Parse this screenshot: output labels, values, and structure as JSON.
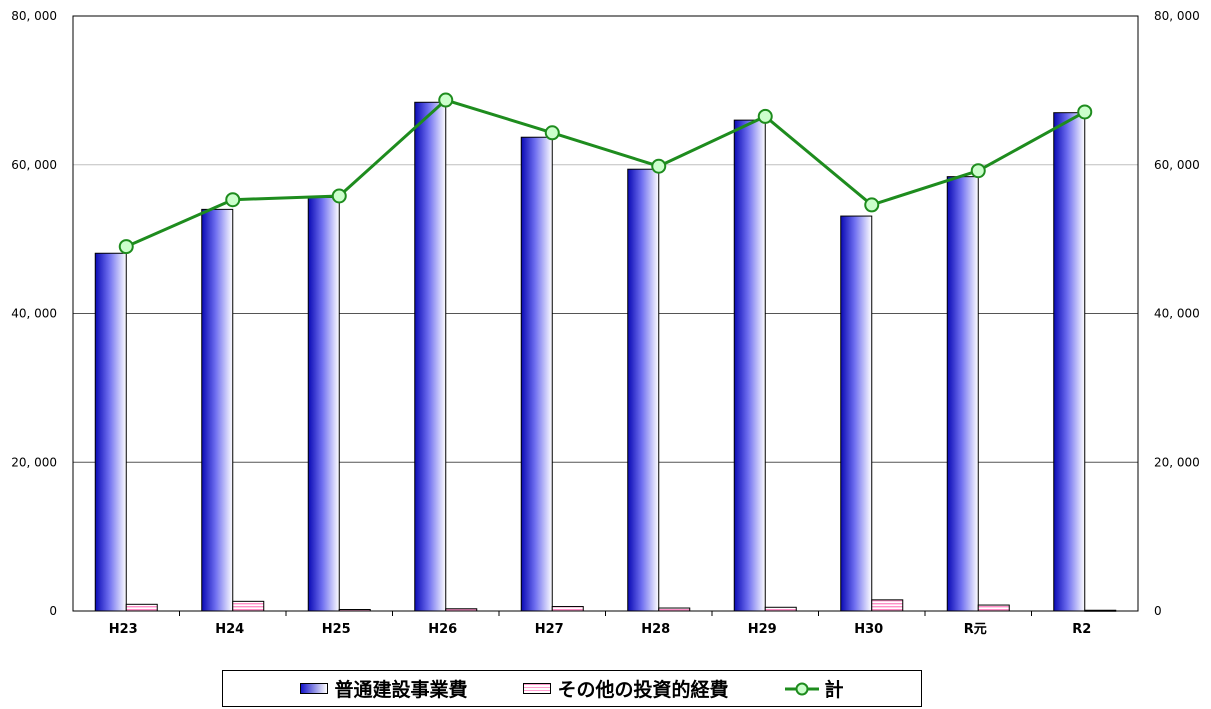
{
  "chart_data": {
    "type": "bar",
    "categories": [
      "H23",
      "H24",
      "H25",
      "H26",
      "H27",
      "H28",
      "H29",
      "H30",
      "R元",
      "R2"
    ],
    "series": [
      {
        "name": "普通建設事業費",
        "type": "bar",
        "color": "#1e1ed2",
        "values": [
          48100,
          54000,
          55600,
          68400,
          63700,
          59400,
          66000,
          53100,
          58400,
          67000
        ]
      },
      {
        "name": "その他の投資的経費",
        "type": "bar",
        "color": "#ff9ccf",
        "values": [
          900,
          1300,
          200,
          300,
          600,
          400,
          500,
          1500,
          800,
          100
        ]
      },
      {
        "name": "計",
        "type": "line",
        "color": "#1e8c1e",
        "marker_fill": "#ccffcc",
        "values": [
          49000,
          55300,
          55800,
          68700,
          64300,
          59800,
          66500,
          54600,
          59200,
          67100
        ]
      }
    ],
    "ylim": [
      0,
      80000
    ],
    "yticks": [
      "0",
      "20, 000",
      "40, 000",
      "60, 000",
      "80, 000"
    ],
    "ytick_values": [
      0,
      20000,
      40000,
      60000,
      80000
    ],
    "y2ticks": [
      "0",
      "20, 000",
      "40, 000",
      "60, 000",
      "80, 000"
    ],
    "grid": true,
    "legend_position": "bottom"
  }
}
